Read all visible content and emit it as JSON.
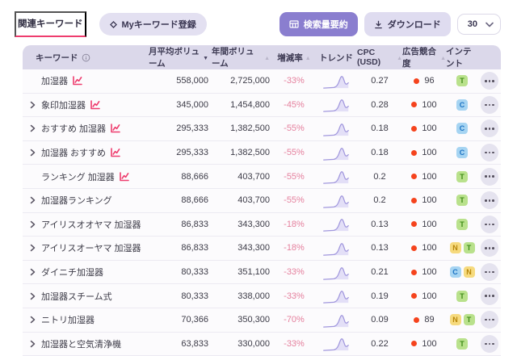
{
  "colors": {
    "accent_pink": "#ee3d6e",
    "change_rate_pink": "#e5819e",
    "primary_purple": "#8a7ecf",
    "lavender_button": "#dfdcf0",
    "header_bg": "#dbd8ea",
    "competition_dot_red": "#f5431d",
    "sparkline_purple": "#a197dd",
    "intent_T": {
      "bg": "#b9e18c",
      "fg": "#3d8a16"
    },
    "intent_C": {
      "bg": "#a6d4f2",
      "fg": "#1d74c4"
    },
    "intent_N": {
      "bg": "#f6da7e",
      "fg": "#b7860b"
    }
  },
  "icons": {
    "my_keywords": "diamond-icon",
    "summary_button": "table-grid-icon",
    "download_button": "download-icon",
    "page_size": "chevron-down-icon",
    "keyword_info": "info-icon",
    "row_expand": "chevron-right-icon",
    "keyword_trend": "chart-line-icon",
    "competition": "dot-icon",
    "row_menu": "ellipsis-icon"
  },
  "tabs": {
    "related_keywords": "関連キーワード",
    "my_keywords": "Myキーワード登録"
  },
  "toolbar": {
    "summary_button": "検索量要約",
    "download_button": "ダウンロード",
    "page_size": "30"
  },
  "table": {
    "columns": [
      {
        "label": "キーワード",
        "sort": null,
        "info": true
      },
      {
        "label": "月平均ボリューム",
        "sort": "desc"
      },
      {
        "label": "年間ボリューム",
        "sort": "asc"
      },
      {
        "label": "増減率",
        "sort": "asc"
      },
      {
        "label": "トレンド",
        "sort": null
      },
      {
        "label": "CPC (USD)",
        "sort": "asc"
      },
      {
        "label": "広告競合度",
        "sort": "asc"
      },
      {
        "label": "インテント",
        "sort": null
      }
    ],
    "rows": [
      {
        "keyword": "加湿器",
        "expandable": false,
        "chart_icon": true,
        "monthly": "558,000",
        "annual": "2,725,000",
        "change": "-33%",
        "cpc": "0.27",
        "competition": "96",
        "intent": [
          "T"
        ]
      },
      {
        "keyword": "象印加湿器",
        "expandable": true,
        "chart_icon": true,
        "monthly": "345,000",
        "annual": "1,454,800",
        "change": "-45%",
        "cpc": "0.28",
        "competition": "100",
        "intent": [
          "C"
        ]
      },
      {
        "keyword": "おすすめ 加湿器",
        "expandable": true,
        "chart_icon": true,
        "monthly": "295,333",
        "annual": "1,382,500",
        "change": "-55%",
        "cpc": "0.18",
        "competition": "100",
        "intent": [
          "C"
        ]
      },
      {
        "keyword": "加湿器 おすすめ",
        "expandable": true,
        "chart_icon": true,
        "monthly": "295,333",
        "annual": "1,382,500",
        "change": "-55%",
        "cpc": "0.18",
        "competition": "100",
        "intent": [
          "C"
        ]
      },
      {
        "keyword": "ランキング 加湿器",
        "expandable": false,
        "chart_icon": true,
        "monthly": "88,666",
        "annual": "403,700",
        "change": "-55%",
        "cpc": "0.2",
        "competition": "100",
        "intent": [
          "T"
        ]
      },
      {
        "keyword": "加湿器ランキング",
        "expandable": true,
        "chart_icon": false,
        "monthly": "88,666",
        "annual": "403,700",
        "change": "-55%",
        "cpc": "0.2",
        "competition": "100",
        "intent": [
          "T"
        ]
      },
      {
        "keyword": "アイリスオオヤマ 加湿器",
        "expandable": true,
        "chart_icon": false,
        "monthly": "86,833",
        "annual": "343,300",
        "change": "-18%",
        "cpc": "0.13",
        "competition": "100",
        "intent": [
          "T"
        ]
      },
      {
        "keyword": "アイリスオーヤマ 加湿器",
        "expandable": true,
        "chart_icon": false,
        "monthly": "86,833",
        "annual": "343,300",
        "change": "-18%",
        "cpc": "0.13",
        "competition": "100",
        "intent": [
          "N",
          "T"
        ]
      },
      {
        "keyword": "ダイニチ加湿器",
        "expandable": true,
        "chart_icon": false,
        "monthly": "80,333",
        "annual": "351,100",
        "change": "-33%",
        "cpc": "0.21",
        "competition": "100",
        "intent": [
          "C",
          "N"
        ]
      },
      {
        "keyword": "加湿器スチーム式",
        "expandable": true,
        "chart_icon": false,
        "monthly": "80,333",
        "annual": "338,000",
        "change": "-33%",
        "cpc": "0.19",
        "competition": "100",
        "intent": [
          "T"
        ]
      },
      {
        "keyword": "ニトリ加湿器",
        "expandable": true,
        "chart_icon": false,
        "monthly": "70,366",
        "annual": "350,300",
        "change": "-70%",
        "cpc": "0.09",
        "competition": "89",
        "intent": [
          "N",
          "T"
        ]
      },
      {
        "keyword": "加湿器と空気清浄機",
        "expandable": true,
        "chart_icon": false,
        "monthly": "63,833",
        "annual": "330,000",
        "change": "-33%",
        "cpc": "0.22",
        "competition": "100",
        "intent": [
          "T"
        ]
      }
    ]
  }
}
